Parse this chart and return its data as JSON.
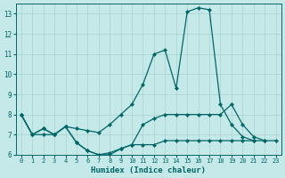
{
  "xlabel": "Humidex (Indice chaleur)",
  "bg_color": "#c5e8e8",
  "grid_color": "#aad0d0",
  "line_color": "#006666",
  "xlim": [
    -0.5,
    23.5
  ],
  "ylim": [
    6,
    13.5
  ],
  "yticks": [
    6,
    7,
    8,
    9,
    10,
    11,
    12,
    13
  ],
  "xticks": [
    0,
    1,
    2,
    3,
    4,
    5,
    6,
    7,
    8,
    9,
    10,
    11,
    12,
    13,
    14,
    15,
    16,
    17,
    18,
    19,
    20,
    21,
    22,
    23
  ],
  "series": [
    {
      "x": [
        0,
        1,
        2,
        3,
        4,
        5,
        6,
        7,
        8,
        9,
        10,
        11,
        12,
        13,
        14,
        15,
        16,
        17,
        18,
        19,
        20,
        21,
        22,
        23
      ],
      "y": [
        8.0,
        7.0,
        7.3,
        7.0,
        7.4,
        7.3,
        7.2,
        7.1,
        7.5,
        8.0,
        8.5,
        9.5,
        11.0,
        11.2,
        9.3,
        13.1,
        13.3,
        13.2,
        8.5,
        7.5,
        6.9,
        6.7,
        null,
        null
      ]
    },
    {
      "x": [
        0,
        1,
        2,
        3,
        4,
        5,
        6,
        7,
        8,
        9,
        10,
        11,
        12,
        13,
        14,
        15,
        16,
        17,
        18,
        19,
        20,
        21,
        22,
        23
      ],
      "y": [
        8.0,
        7.0,
        7.3,
        7.0,
        7.4,
        6.6,
        6.2,
        6.0,
        6.1,
        6.3,
        6.5,
        7.5,
        7.8,
        8.0,
        8.0,
        8.0,
        8.0,
        8.0,
        8.0,
        8.5,
        7.5,
        6.9,
        6.7,
        null
      ]
    },
    {
      "x": [
        0,
        1,
        2,
        3,
        4,
        5,
        6,
        7,
        8,
        9,
        10,
        11,
        12,
        13,
        14,
        15,
        16,
        17,
        18,
        19,
        20,
        21,
        22,
        23
      ],
      "y": [
        8.0,
        7.0,
        7.0,
        7.0,
        7.4,
        6.6,
        6.2,
        6.0,
        6.0,
        6.3,
        6.5,
        6.5,
        6.5,
        6.7,
        6.7,
        6.7,
        6.7,
        6.7,
        6.7,
        6.7,
        6.7,
        6.7,
        6.7,
        6.7
      ]
    }
  ]
}
